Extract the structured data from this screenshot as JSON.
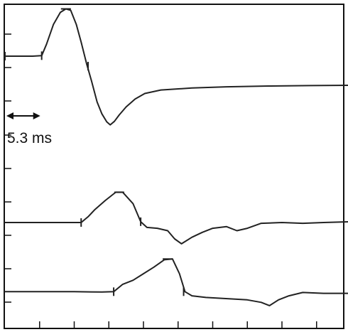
{
  "chart_data": {
    "type": "line",
    "title": "",
    "xlabel": "",
    "ylabel": "",
    "grid": false,
    "legend": "none",
    "x_unit": "ms",
    "xlim": [
      0,
      50
    ],
    "x_ticks": [
      5,
      10,
      15,
      20,
      25,
      30,
      35,
      40,
      45
    ],
    "series": [
      {
        "points": [
          [
            0,
            5.0
          ],
          [
            2,
            5.0
          ],
          [
            4,
            5.0
          ],
          [
            5.3,
            5.05
          ],
          [
            6,
            6.2
          ],
          [
            7,
            8.2
          ],
          [
            8,
            9.4
          ],
          [
            8.8,
            9.75
          ],
          [
            9.5,
            9.6
          ],
          [
            10.3,
            8.2
          ],
          [
            11,
            6.4
          ],
          [
            11.8,
            4.2
          ],
          [
            12.5,
            2.5
          ],
          [
            13.3,
            0.4
          ],
          [
            14,
            -0.8
          ],
          [
            14.7,
            -1.6
          ],
          [
            15.2,
            -1.9
          ],
          [
            15.8,
            -1.55
          ],
          [
            16.5,
            -0.9
          ],
          [
            17.5,
            -0.1
          ],
          [
            18.8,
            0.7
          ],
          [
            20.2,
            1.25
          ],
          [
            22.5,
            1.6
          ],
          [
            27,
            1.8
          ],
          [
            32,
            1.92
          ],
          [
            38,
            2.0
          ],
          [
            44,
            2.04
          ],
          [
            50,
            2.08
          ]
        ],
        "markers": [
          [
            0,
            5.0
          ],
          [
            5.3,
            5.05
          ],
          [
            8.8,
            9.75
          ],
          [
            12,
            4.0
          ]
        ]
      },
      {
        "points": [
          [
            0,
            0.0
          ],
          [
            4,
            0.0
          ],
          [
            8,
            0.0
          ],
          [
            11,
            0.0
          ],
          [
            12,
            0.35
          ],
          [
            13,
            0.8
          ],
          [
            14.5,
            1.35
          ],
          [
            16,
            1.85
          ],
          [
            17,
            1.85
          ],
          [
            18.5,
            1.15
          ],
          [
            19.6,
            0.05
          ],
          [
            20.5,
            -0.3
          ],
          [
            22,
            -0.35
          ],
          [
            23.5,
            -0.5
          ],
          [
            24.5,
            -1.0
          ],
          [
            25.5,
            -1.3
          ],
          [
            27,
            -0.9
          ],
          [
            28.5,
            -0.6
          ],
          [
            30,
            -0.35
          ],
          [
            32,
            -0.25
          ],
          [
            33.5,
            -0.5
          ],
          [
            35,
            -0.35
          ],
          [
            37,
            -0.05
          ],
          [
            40,
            0.0
          ],
          [
            43,
            -0.05
          ],
          [
            46,
            0.0
          ],
          [
            50,
            0.05
          ]
        ],
        "markers": [
          [
            11,
            0.0
          ],
          [
            16.5,
            1.85
          ],
          [
            19.6,
            0.05
          ]
        ]
      },
      {
        "points": [
          [
            0,
            -2.1
          ],
          [
            5,
            -2.1
          ],
          [
            10,
            -2.1
          ],
          [
            14,
            -2.12
          ],
          [
            15.7,
            -2.1
          ],
          [
            17,
            -1.65
          ],
          [
            18.5,
            -1.4
          ],
          [
            20,
            -1.0
          ],
          [
            21.5,
            -0.6
          ],
          [
            23,
            -0.15
          ],
          [
            24.2,
            -0.1
          ],
          [
            25.2,
            -1.0
          ],
          [
            26,
            -2.1
          ],
          [
            27,
            -2.35
          ],
          [
            29,
            -2.45
          ],
          [
            31,
            -2.5
          ],
          [
            33,
            -2.55
          ],
          [
            35,
            -2.6
          ],
          [
            37,
            -2.75
          ],
          [
            38.2,
            -2.95
          ],
          [
            39.5,
            -2.6
          ],
          [
            41,
            -2.35
          ],
          [
            43,
            -2.15
          ],
          [
            46,
            -2.2
          ],
          [
            50,
            -2.2
          ]
        ],
        "markers": [
          [
            15.7,
            -2.1
          ],
          [
            23.5,
            -0.1
          ],
          [
            25.8,
            -2.1
          ]
        ]
      }
    ],
    "annotations": [
      {
        "text": "5.3 ms",
        "x_from": 0,
        "x_to": 5.3,
        "y": 4.6
      }
    ]
  },
  "colors": {
    "trace": "#222222",
    "axis": "#111111",
    "background": "#ffffff"
  }
}
